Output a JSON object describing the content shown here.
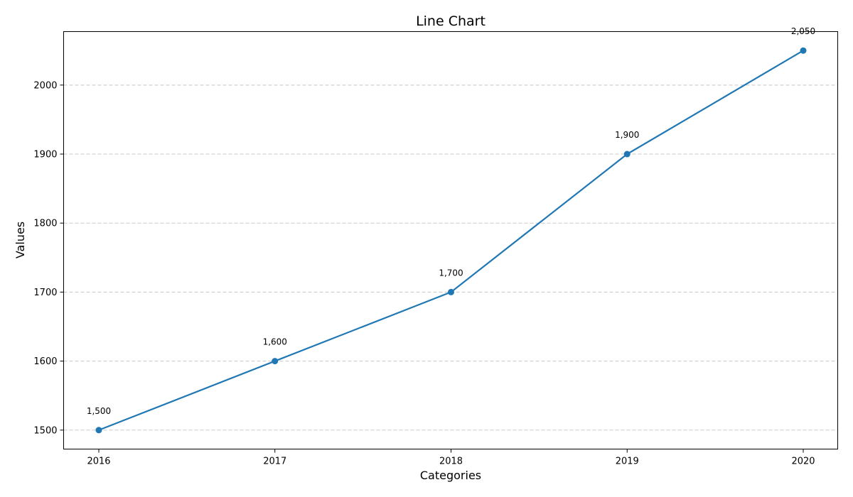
{
  "chart_data": {
    "type": "line",
    "title": "Line Chart",
    "xlabel": "Categories",
    "ylabel": "Values",
    "categories": [
      "2016",
      "2017",
      "2018",
      "2019",
      "2020"
    ],
    "series": [
      {
        "values": [
          1500,
          1600,
          1700,
          1900,
          2050
        ],
        "labels": [
          "1,500",
          "1,600",
          "1,700",
          "1,900",
          "2,050"
        ],
        "color": "#1f77b4"
      }
    ],
    "y_ticks": [
      1500,
      1600,
      1700,
      1800,
      1900,
      2000
    ],
    "y_tick_labels": [
      "1500",
      "1600",
      "1700",
      "1800",
      "1900",
      "2000"
    ],
    "ylim": [
      1472.5,
      2077.5
    ],
    "grid": {
      "y": true,
      "x": false,
      "style": "dashed",
      "color": "#c8c8c8"
    },
    "markers": "circle"
  }
}
